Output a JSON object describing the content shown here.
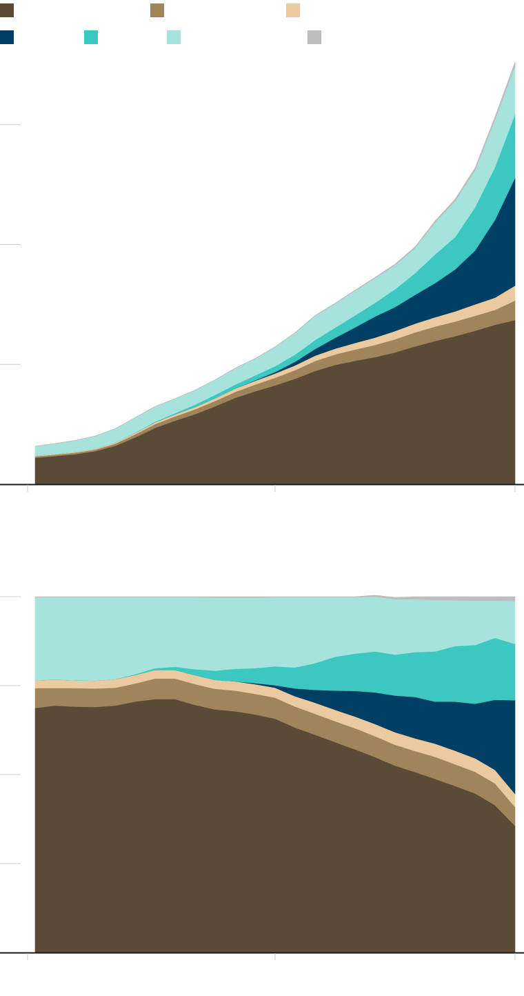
{
  "legend": {
    "items": [
      {
        "color": "#5a4a36",
        "label": ""
      },
      {
        "color": "#a0855c",
        "label": ""
      },
      {
        "color": "#ebcaa0",
        "label": ""
      },
      {
        "color": "#003f63",
        "label": ""
      },
      {
        "color": "#3cc8c0",
        "label": ""
      },
      {
        "color": "#a6e3dd",
        "label": ""
      },
      {
        "color": "#bdbdbd",
        "label": ""
      }
    ]
  },
  "chart_data": [
    {
      "type": "area",
      "stacked": true,
      "x": [
        0,
        1,
        2,
        3,
        4,
        5,
        6,
        7,
        8,
        9,
        10,
        11,
        12,
        13,
        14,
        15,
        16,
        17,
        18,
        19,
        20,
        21,
        22,
        23,
        24
      ],
      "ylim": [
        0,
        3.35
      ],
      "y_ticks": [
        1,
        2,
        3
      ],
      "grid": false,
      "legend_position": "top",
      "series": [
        {
          "color": "#5a4a36",
          "values": [
            0.22,
            0.235,
            0.25,
            0.275,
            0.32,
            0.39,
            0.47,
            0.53,
            0.585,
            0.65,
            0.72,
            0.775,
            0.825,
            0.88,
            0.945,
            0.995,
            1.03,
            1.06,
            1.1,
            1.15,
            1.195,
            1.235,
            1.28,
            1.33,
            1.37
          ]
        },
        {
          "color": "#a0855c",
          "values": [
            0.012,
            0.012,
            0.013,
            0.014,
            0.018,
            0.026,
            0.032,
            0.036,
            0.04,
            0.044,
            0.05,
            0.056,
            0.063,
            0.072,
            0.083,
            0.088,
            0.094,
            0.102,
            0.11,
            0.117,
            0.12,
            0.122,
            0.125,
            0.125,
            0.162
          ]
        },
        {
          "color": "#ebcaa0",
          "values": [
            0.006,
            0.006,
            0.006,
            0.007,
            0.009,
            0.012,
            0.015,
            0.017,
            0.019,
            0.023,
            0.028,
            0.032,
            0.036,
            0.04,
            0.045,
            0.048,
            0.055,
            0.062,
            0.068,
            0.073,
            0.078,
            0.085,
            0.095,
            0.102,
            0.125
          ]
        },
        {
          "color": "#003f63",
          "values": [
            0.0,
            0.0,
            0.0,
            0.0,
            0.0,
            0.0,
            0.0,
            0.0,
            0.0,
            0.0,
            0.0,
            0.004,
            0.012,
            0.03,
            0.055,
            0.09,
            0.13,
            0.175,
            0.2,
            0.24,
            0.285,
            0.35,
            0.45,
            0.65,
            0.9
          ]
        },
        {
          "color": "#3cc8c0",
          "values": [
            0.0,
            0.0,
            0.0,
            0.0,
            0.0,
            0.002,
            0.005,
            0.01,
            0.02,
            0.028,
            0.033,
            0.04,
            0.048,
            0.06,
            0.075,
            0.085,
            0.1,
            0.115,
            0.15,
            0.18,
            0.24,
            0.27,
            0.36,
            0.44,
            0.53
          ]
        },
        {
          "color": "#a6e3dd",
          "values": [
            0.078,
            0.085,
            0.095,
            0.105,
            0.115,
            0.125,
            0.125,
            0.12,
            0.12,
            0.125,
            0.135,
            0.14,
            0.16,
            0.18,
            0.2,
            0.2,
            0.205,
            0.205,
            0.2,
            0.21,
            0.265,
            0.3,
            0.31,
            0.395,
            0.405
          ]
        },
        {
          "color": "#bdbdbd",
          "values": [
            0.002,
            0.002,
            0.002,
            0.002,
            0.002,
            0.002,
            0.002,
            0.002,
            0.002,
            0.002,
            0.003,
            0.003,
            0.003,
            0.004,
            0.005,
            0.005,
            0.006,
            0.008,
            0.01,
            0.012,
            0.014,
            0.017,
            0.02,
            0.025,
            0.03
          ]
        }
      ]
    },
    {
      "type": "area",
      "stacked": true,
      "percent": true,
      "x": [
        0,
        1,
        2,
        3,
        4,
        5,
        6,
        7,
        8,
        9,
        10,
        11,
        12,
        13,
        14,
        15,
        16,
        17,
        18,
        19,
        20,
        21,
        22,
        23,
        24
      ],
      "ylim": [
        0,
        100
      ],
      "y_ticks": [
        25,
        50,
        75,
        100
      ],
      "grid": false,
      "series": [
        {
          "color": "#5a4a36",
          "values": [
            68.7,
            69.4,
            69.1,
            69.0,
            69.4,
            70.5,
            71.2,
            71.2,
            69.6,
            68.3,
            67.8,
            66.9,
            65.7,
            63.2,
            61.2,
            59.1,
            57.1,
            54.9,
            52.5,
            50.7,
            48.8,
            46.8,
            44.7,
            41.4,
            35.6
          ]
        },
        {
          "color": "#a0855c",
          "values": [
            5.6,
            4.9,
            5.2,
            5.2,
            5.0,
            5.1,
            5.8,
            5.8,
            5.8,
            5.8,
            5.8,
            5.8,
            5.9,
            5.9,
            5.9,
            5.9,
            5.9,
            5.9,
            5.9,
            5.9,
            6.2,
            6.1,
            6.1,
            6.1,
            5.3
          ]
        },
        {
          "color": "#ebcaa0",
          "values": [
            2.2,
            2.4,
            2.2,
            2.2,
            2.4,
            2.4,
            2.4,
            2.4,
            2.5,
            2.5,
            2.6,
            2.7,
            2.8,
            2.9,
            3.1,
            3.2,
            3.3,
            3.4,
            3.5,
            3.6,
            3.7,
            3.8,
            3.8,
            3.8,
            3.7
          ]
        },
        {
          "color": "#003f63",
          "values": [
            0.0,
            0.0,
            0.0,
            0.0,
            0.0,
            0.0,
            0.0,
            0.0,
            0.0,
            0.0,
            0.0,
            0.3,
            0.7,
            2.2,
            3.6,
            5.4,
            7.2,
            8.9,
            10.3,
            11.6,
            11.8,
            13.8,
            15.3,
            19.7,
            26.3
          ]
        },
        {
          "color": "#3cc8c0",
          "values": [
            0.0,
            0.0,
            0.0,
            0.0,
            0.0,
            0.2,
            0.5,
            0.9,
            1.7,
            2.6,
            3.5,
            4.2,
            5.3,
            5.9,
            7.5,
            9.5,
            10.5,
            11.5,
            11.5,
            12.6,
            14.1,
            15.6,
            16.5,
            17.4,
            15.8
          ]
        },
        {
          "color": "#a6e3dd",
          "values": [
            23.3,
            23.1,
            23.3,
            23.4,
            23.0,
            21.6,
            19.9,
            19.5,
            20.2,
            20.5,
            20.0,
            19.8,
            19.4,
            19.7,
            18.5,
            16.7,
            15.8,
            15.4,
            15.6,
            14.9,
            14.4,
            12.9,
            12.5,
            10.5,
            12.1
          ]
        },
        {
          "color": "#bdbdbd",
          "values": [
            0.2,
            0.2,
            0.2,
            0.2,
            0.2,
            0.2,
            0.2,
            0.2,
            0.2,
            0.3,
            0.3,
            0.3,
            0.2,
            0.2,
            0.2,
            0.2,
            0.2,
            0.4,
            0.5,
            0.7,
            1.0,
            1.0,
            1.1,
            1.1,
            1.2
          ]
        }
      ]
    }
  ]
}
